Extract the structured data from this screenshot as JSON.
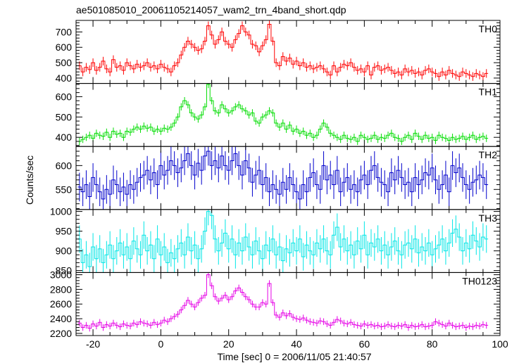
{
  "chart_data": {
    "type": "line",
    "title": "ae501085010_20061105214057_wam2_trn_4band_short.qdp",
    "xlabel": "Time [sec] 0 = 2006/11/05 21:40:57",
    "ylabel": "Counts/sec",
    "xlim": [
      -25,
      100
    ],
    "x_ticks": [
      -20,
      0,
      20,
      40,
      60,
      80,
      100
    ],
    "bin_width": 1,
    "x_start": -24,
    "panels": [
      {
        "name": "TH0",
        "color": "#ff0000",
        "ylim": [
          365,
          775
        ],
        "y_ticks": [
          400,
          500,
          600,
          700
        ],
        "values": [
          480,
          440,
          470,
          455,
          500,
          450,
          470,
          510,
          460,
          440,
          520,
          470,
          480,
          450,
          500,
          480,
          460,
          490,
          470,
          480,
          500,
          470,
          480,
          460,
          490,
          470,
          460,
          440,
          480,
          500,
          550,
          600,
          640,
          620,
          600,
          580,
          590,
          640,
          740,
          680,
          620,
          650,
          700,
          640,
          620,
          600,
          650,
          690,
          740,
          700,
          680,
          620,
          610,
          570,
          610,
          650,
          750,
          640,
          500,
          480,
          540,
          510,
          530,
          490,
          510,
          480,
          500,
          470,
          480,
          460,
          470,
          480,
          460,
          440,
          420,
          480,
          440,
          470,
          490,
          480,
          500,
          470,
          450,
          460,
          440,
          480,
          420,
          470,
          480,
          450,
          460,
          470,
          450,
          430,
          440,
          420,
          460,
          440,
          450,
          430,
          440,
          420,
          450,
          460,
          440,
          430,
          410,
          440,
          420,
          450,
          430,
          420,
          410,
          440,
          430,
          420,
          410,
          430,
          420,
          410,
          430
        ],
        "error": 28
      },
      {
        "name": "TH1",
        "color": "#00dd00",
        "ylim": [
          355,
          665
        ],
        "y_ticks": [
          400,
          500,
          600
        ],
        "values": [
          380,
          390,
          400,
          410,
          395,
          420,
          410,
          405,
          425,
          400,
          430,
          415,
          420,
          400,
          430,
          425,
          440,
          450,
          440,
          455,
          445,
          450,
          430,
          440,
          430,
          445,
          440,
          450,
          470,
          500,
          550,
          580,
          560,
          520,
          500,
          490,
          510,
          550,
          660,
          580,
          530,
          520,
          560,
          540,
          520,
          530,
          550,
          560,
          540,
          530,
          510,
          520,
          480,
          470,
          500,
          510,
          530,
          520,
          470,
          450,
          470,
          440,
          460,
          430,
          440,
          420,
          430,
          410,
          420,
          400,
          410,
          440,
          470,
          450,
          420,
          410,
          400,
          390,
          410,
          395,
          390,
          400,
          380,
          410,
          400,
          390,
          395,
          410,
          390,
          400,
          395,
          410,
          420,
          400,
          395,
          380,
          400,
          410,
          390,
          420,
          405,
          390,
          410,
          395,
          400,
          385,
          410,
          400,
          395,
          385,
          400,
          390,
          395,
          405,
          390,
          400,
          410,
          390,
          400,
          405,
          395
        ],
        "error": 18
      },
      {
        "name": "TH2",
        "color": "#0000cc",
        "ylim": [
          508,
          640
        ],
        "y_ticks": [
          550,
          600
        ],
        "values": [
          555,
          545,
          560,
          535,
          575,
          560,
          545,
          530,
          550,
          540,
          570,
          560,
          545,
          555,
          540,
          560,
          550,
          565,
          575,
          580,
          590,
          570,
          585,
          560,
          600,
          580,
          590,
          610,
          600,
          585,
          595,
          610,
          625,
          600,
          580,
          605,
          590,
          620,
          630,
          600,
          610,
          595,
          620,
          600,
          590,
          610,
          625,
          600,
          580,
          610,
          595,
          565,
          580,
          590,
          560,
          575,
          545,
          560,
          550,
          540,
          565,
          550,
          575,
          560,
          545,
          530,
          560,
          545,
          575,
          585,
          560,
          550,
          600,
          570,
          580,
          560,
          590,
          545,
          565,
          575,
          550,
          560,
          545,
          570,
          580,
          560,
          590,
          600,
          575,
          565,
          560,
          545,
          585,
          570,
          590,
          575,
          560,
          565,
          545,
          575,
          560,
          570,
          585,
          580,
          595,
          570,
          550,
          560,
          580,
          545,
          600,
          585,
          595,
          575,
          560,
          550,
          565,
          570,
          580,
          575,
          560
        ],
        "error": 30
      },
      {
        "name": "TH3",
        "color": "#00e6e6",
        "ylim": [
          845,
          1005
        ],
        "y_ticks": [
          850,
          900,
          950,
          1000
        ],
        "values": [
          930,
          870,
          890,
          860,
          910,
          880,
          905,
          870,
          890,
          915,
          880,
          900,
          920,
          890,
          910,
          880,
          925,
          905,
          890,
          940,
          900,
          915,
          880,
          930,
          890,
          910,
          870,
          895,
          880,
          905,
          920,
          890,
          935,
          900,
          915,
          880,
          905,
          950,
          1000,
          990,
          930,
          900,
          920,
          945,
          905,
          930,
          890,
          920,
          900,
          935,
          910,
          890,
          925,
          900,
          880,
          915,
          900,
          930,
          890,
          910,
          875,
          905,
          895,
          920,
          900,
          930,
          885,
          915,
          900,
          890,
          920,
          905,
          930,
          900,
          890,
          940,
          960,
          910,
          930,
          900,
          915,
          890,
          925,
          905,
          940,
          890,
          920,
          910,
          930,
          900,
          915,
          890,
          910,
          925,
          900,
          890,
          915,
          920,
          905,
          930,
          895,
          910,
          900,
          920,
          890,
          905,
          915,
          930,
          900,
          920,
          945,
          955,
          935,
          900,
          920,
          905,
          940,
          925,
          910,
          935,
          930
        ],
        "error": 35
      },
      {
        "name": "TH0123",
        "color": "#e600e6",
        "ylim": [
          2170,
          3030
        ],
        "y_ticks": [
          2200,
          2400,
          2600,
          2800,
          3000
        ],
        "values": [
          2340,
          2280,
          2310,
          2270,
          2330,
          2300,
          2350,
          2280,
          2320,
          2300,
          2340,
          2310,
          2290,
          2330,
          2310,
          2300,
          2340,
          2320,
          2360,
          2340,
          2330,
          2310,
          2350,
          2320,
          2340,
          2380,
          2360,
          2400,
          2430,
          2460,
          2520,
          2580,
          2650,
          2600,
          2560,
          2620,
          2680,
          2720,
          3000,
          2850,
          2700,
          2640,
          2680,
          2720,
          2660,
          2700,
          2780,
          2820,
          2760,
          2700,
          2660,
          2600,
          2560,
          2560,
          2620,
          2600,
          2880,
          2620,
          2450,
          2420,
          2480,
          2440,
          2470,
          2420,
          2400,
          2390,
          2410,
          2380,
          2360,
          2350,
          2340,
          2370,
          2360,
          2330,
          2310,
          2350,
          2390,
          2370,
          2340,
          2330,
          2350,
          2320,
          2310,
          2300,
          2330,
          2310,
          2320,
          2300,
          2310,
          2290,
          2300,
          2320,
          2300,
          2290,
          2310,
          2300,
          2320,
          2280,
          2310,
          2290,
          2300,
          2320,
          2290,
          2300,
          2310,
          2360,
          2340,
          2320,
          2300,
          2340,
          2310,
          2290,
          2300,
          2310,
          2280,
          2300,
          2290,
          2310,
          2300,
          2320,
          2310
        ],
        "error": 45
      }
    ]
  }
}
